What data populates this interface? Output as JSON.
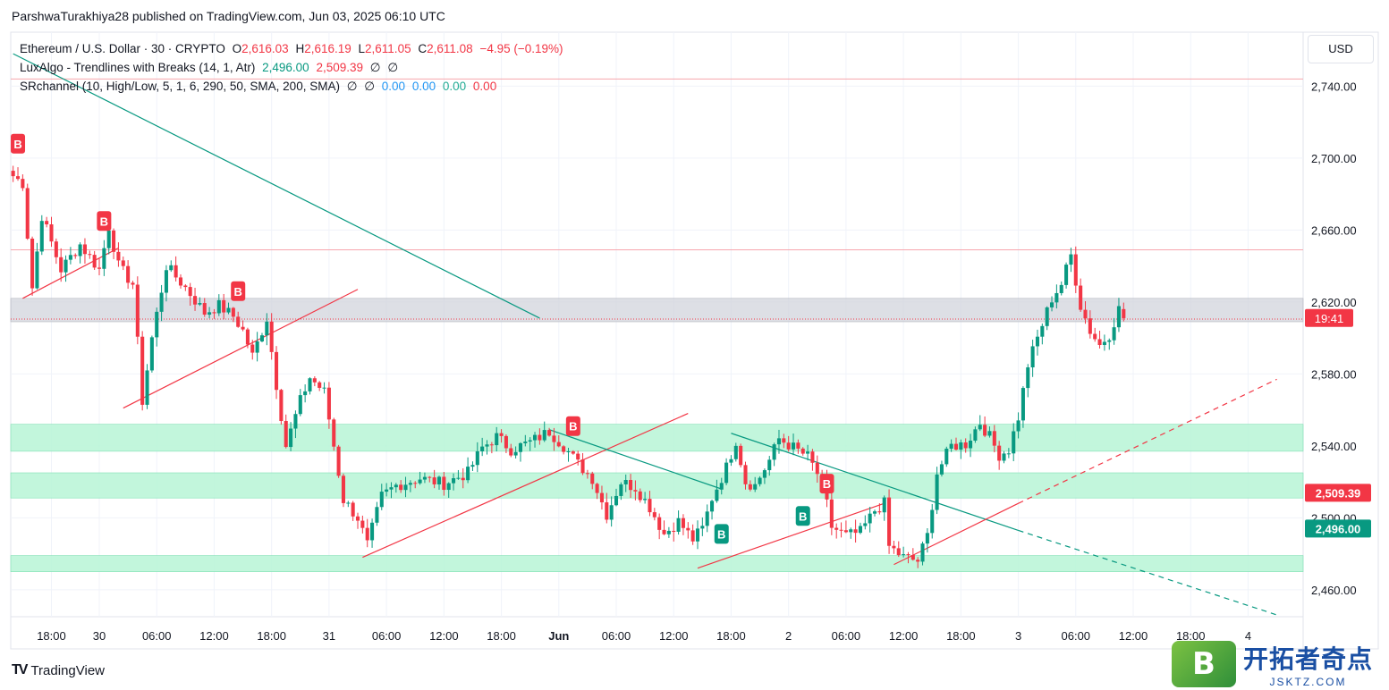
{
  "header": {
    "text": "ParshwaTurakhiya28 published on TradingView.com, Jun 03, 2025 06:10 UTC"
  },
  "legend": {
    "symbol": "Ethereum / U.S. Dollar · 30 · CRYPTO",
    "o_label": "O",
    "o": "2,616.03",
    "h_label": "H",
    "h": "2,616.19",
    "l_label": "L",
    "l": "2,611.05",
    "c_label": "C",
    "c": "2,611.08",
    "change": "−4.95 (−0.19%)",
    "indicator1": "LuxAlgo - Trendlines with Breaks (14, 1, Atr)",
    "ind1_v1": "2,496.00",
    "ind1_v2": "2,509.39",
    "ind1_v3": "∅",
    "ind1_v4": "∅",
    "indicator2": "SRchannel (10, High/Low, 5, 1, 6, 290, 50, SMA, 200, SMA)",
    "ind2_v1": "∅",
    "ind2_v2": "∅",
    "ind2_v3": "0.00",
    "ind2_v4": "0.00",
    "ind2_v5": "0.00",
    "ind2_v6": "0.00"
  },
  "currency": "USD",
  "footer": {
    "brand": "TradingView"
  },
  "watermark": {
    "badge": "B",
    "cn": "开拓者奇点",
    "url": "JSKTZ.COM"
  },
  "colors": {
    "up": "#089981",
    "down": "#f23645",
    "zone": "#b7f5d6",
    "resistance": "#d1d4dc"
  },
  "chart_data": {
    "type": "candlestick",
    "ylim": [
      2445,
      2770
    ],
    "y_ticks": [
      "2,460.00",
      "2,500.00",
      "2,540.00",
      "2,580.00",
      "2,620.00",
      "2,660.00",
      "2,700.00",
      "2,740.00"
    ],
    "y_tick_values": [
      2460,
      2500,
      2540,
      2580,
      2620,
      2660,
      2700,
      2740
    ],
    "x_ticks": [
      "18:00",
      "30",
      "06:00",
      "12:00",
      "18:00",
      "31",
      "06:00",
      "12:00",
      "18:00",
      "Jun",
      "06:00",
      "12:00",
      "18:00",
      "2",
      "06:00",
      "12:00",
      "18:00",
      "3",
      "06:00",
      "12:00",
      "18:00",
      "4"
    ],
    "x_tick_index": [
      8,
      18,
      30,
      42,
      54,
      66,
      78,
      90,
      102,
      114,
      126,
      138,
      150,
      162,
      174,
      186,
      198,
      210,
      222,
      234,
      246,
      258
    ],
    "bar_count": 270,
    "current_price": {
      "value": 2611.08,
      "label": "19:41"
    },
    "indicator_labels": [
      {
        "value": 2509.39,
        "label": "2,509.39",
        "color": "#f23645"
      },
      {
        "value": 2496.0,
        "label": "2,496.00",
        "color": "#089981"
      }
    ],
    "zones": [
      {
        "low": 2537,
        "high": 2552,
        "type": "support"
      },
      {
        "low": 2511,
        "high": 2525,
        "type": "support"
      },
      {
        "low": 2470,
        "high": 2479,
        "type": "support"
      },
      {
        "low": 2609,
        "high": 2622,
        "type": "resistance"
      }
    ],
    "horizontal_lines": [
      {
        "value": 2744,
        "color": "#f7a6ad"
      },
      {
        "value": 2649,
        "color": "#f7a6ad"
      },
      {
        "value": 2610.5,
        "color": "#f23645",
        "dashed": true
      }
    ],
    "trendlines": [
      {
        "x1": 0,
        "y1": 2758,
        "x2": 110,
        "y2": 2611,
        "color": "#089981"
      },
      {
        "x1": 2,
        "y1": 2622,
        "x2": 22,
        "y2": 2650,
        "color": "#f23645"
      },
      {
        "x1": 23,
        "y1": 2561,
        "x2": 72,
        "y2": 2627,
        "color": "#f23645"
      },
      {
        "x1": 73,
        "y1": 2478,
        "x2": 141,
        "y2": 2558,
        "color": "#f23645"
      },
      {
        "x1": 112,
        "y1": 2549,
        "x2": 148,
        "y2": 2516,
        "color": "#089981"
      },
      {
        "x1": 143,
        "y1": 2472,
        "x2": 182,
        "y2": 2508,
        "color": "#f23645"
      },
      {
        "x1": 150,
        "y1": 2547,
        "x2": 210,
        "y2": 2493,
        "color": "#089981"
      },
      {
        "x1": 210,
        "y1": 2493,
        "x2": 264,
        "y2": 2446,
        "color": "#089981",
        "dashed": true
      },
      {
        "x1": 184,
        "y1": 2474,
        "x2": 210,
        "y2": 2508,
        "color": "#f23645"
      },
      {
        "x1": 210,
        "y1": 2508,
        "x2": 264,
        "y2": 2577,
        "color": "#f23645",
        "dashed": true
      }
    ],
    "signals": [
      {
        "x": 1,
        "price": 2708,
        "label": "B",
        "color": "#f23645"
      },
      {
        "x": 19,
        "price": 2665,
        "label": "B",
        "color": "#f23645"
      },
      {
        "x": 47,
        "price": 2626,
        "label": "B",
        "color": "#f23645"
      },
      {
        "x": 117,
        "price": 2551,
        "label": "B",
        "color": "#f23645"
      },
      {
        "x": 148,
        "price": 2491,
        "label": "B",
        "color": "#089981"
      },
      {
        "x": 165,
        "price": 2501,
        "label": "B",
        "color": "#089981"
      },
      {
        "x": 170,
        "price": 2519,
        "label": "B",
        "color": "#f23645"
      }
    ],
    "key_prices": [
      [
        0,
        2690
      ],
      [
        2,
        2686
      ],
      [
        4,
        2628
      ],
      [
        6,
        2668
      ],
      [
        10,
        2638
      ],
      [
        14,
        2652
      ],
      [
        18,
        2638
      ],
      [
        20,
        2662
      ],
      [
        22,
        2640
      ],
      [
        25,
        2630
      ],
      [
        27,
        2565
      ],
      [
        29,
        2600
      ],
      [
        32,
        2640
      ],
      [
        36,
        2628
      ],
      [
        40,
        2614
      ],
      [
        43,
        2618
      ],
      [
        46,
        2612
      ],
      [
        48,
        2604
      ],
      [
        50,
        2590
      ],
      [
        53,
        2611
      ],
      [
        55,
        2574
      ],
      [
        57,
        2540
      ],
      [
        60,
        2565
      ],
      [
        62,
        2578
      ],
      [
        65,
        2570
      ],
      [
        67,
        2540
      ],
      [
        69,
        2510
      ],
      [
        72,
        2500
      ],
      [
        74,
        2485
      ],
      [
        77,
        2512
      ],
      [
        80,
        2518
      ],
      [
        85,
        2522
      ],
      [
        90,
        2519
      ],
      [
        95,
        2525
      ],
      [
        98,
        2539
      ],
      [
        101,
        2545
      ],
      [
        104,
        2538
      ],
      [
        108,
        2542
      ],
      [
        112,
        2548
      ],
      [
        115,
        2540
      ],
      [
        118,
        2530
      ],
      [
        121,
        2522
      ],
      [
        124,
        2502
      ],
      [
        127,
        2520
      ],
      [
        130,
        2517
      ],
      [
        133,
        2506
      ],
      [
        136,
        2491
      ],
      [
        139,
        2498
      ],
      [
        142,
        2488
      ],
      [
        144,
        2494
      ],
      [
        146,
        2511
      ],
      [
        149,
        2528
      ],
      [
        151,
        2543
      ],
      [
        153,
        2520
      ],
      [
        155,
        2518
      ],
      [
        158,
        2532
      ],
      [
        160,
        2544
      ],
      [
        163,
        2539
      ],
      [
        166,
        2534
      ],
      [
        169,
        2520
      ],
      [
        171,
        2495
      ],
      [
        174,
        2490
      ],
      [
        177,
        2492
      ],
      [
        180,
        2504
      ],
      [
        182,
        2508
      ],
      [
        183,
        2484
      ],
      [
        186,
        2478
      ],
      [
        189,
        2476
      ],
      [
        191,
        2490
      ],
      [
        193,
        2525
      ],
      [
        196,
        2540
      ],
      [
        199,
        2541
      ],
      [
        202,
        2553
      ],
      [
        204,
        2545
      ],
      [
        206,
        2535
      ],
      [
        208,
        2538
      ],
      [
        210,
        2556
      ],
      [
        212,
        2585
      ],
      [
        214,
        2600
      ],
      [
        217,
        2622
      ],
      [
        219,
        2630
      ],
      [
        221,
        2646
      ],
      [
        223,
        2618
      ],
      [
        225,
        2604
      ],
      [
        227,
        2596
      ],
      [
        229,
        2602
      ],
      [
        231,
        2616
      ],
      [
        232,
        2611
      ]
    ]
  }
}
